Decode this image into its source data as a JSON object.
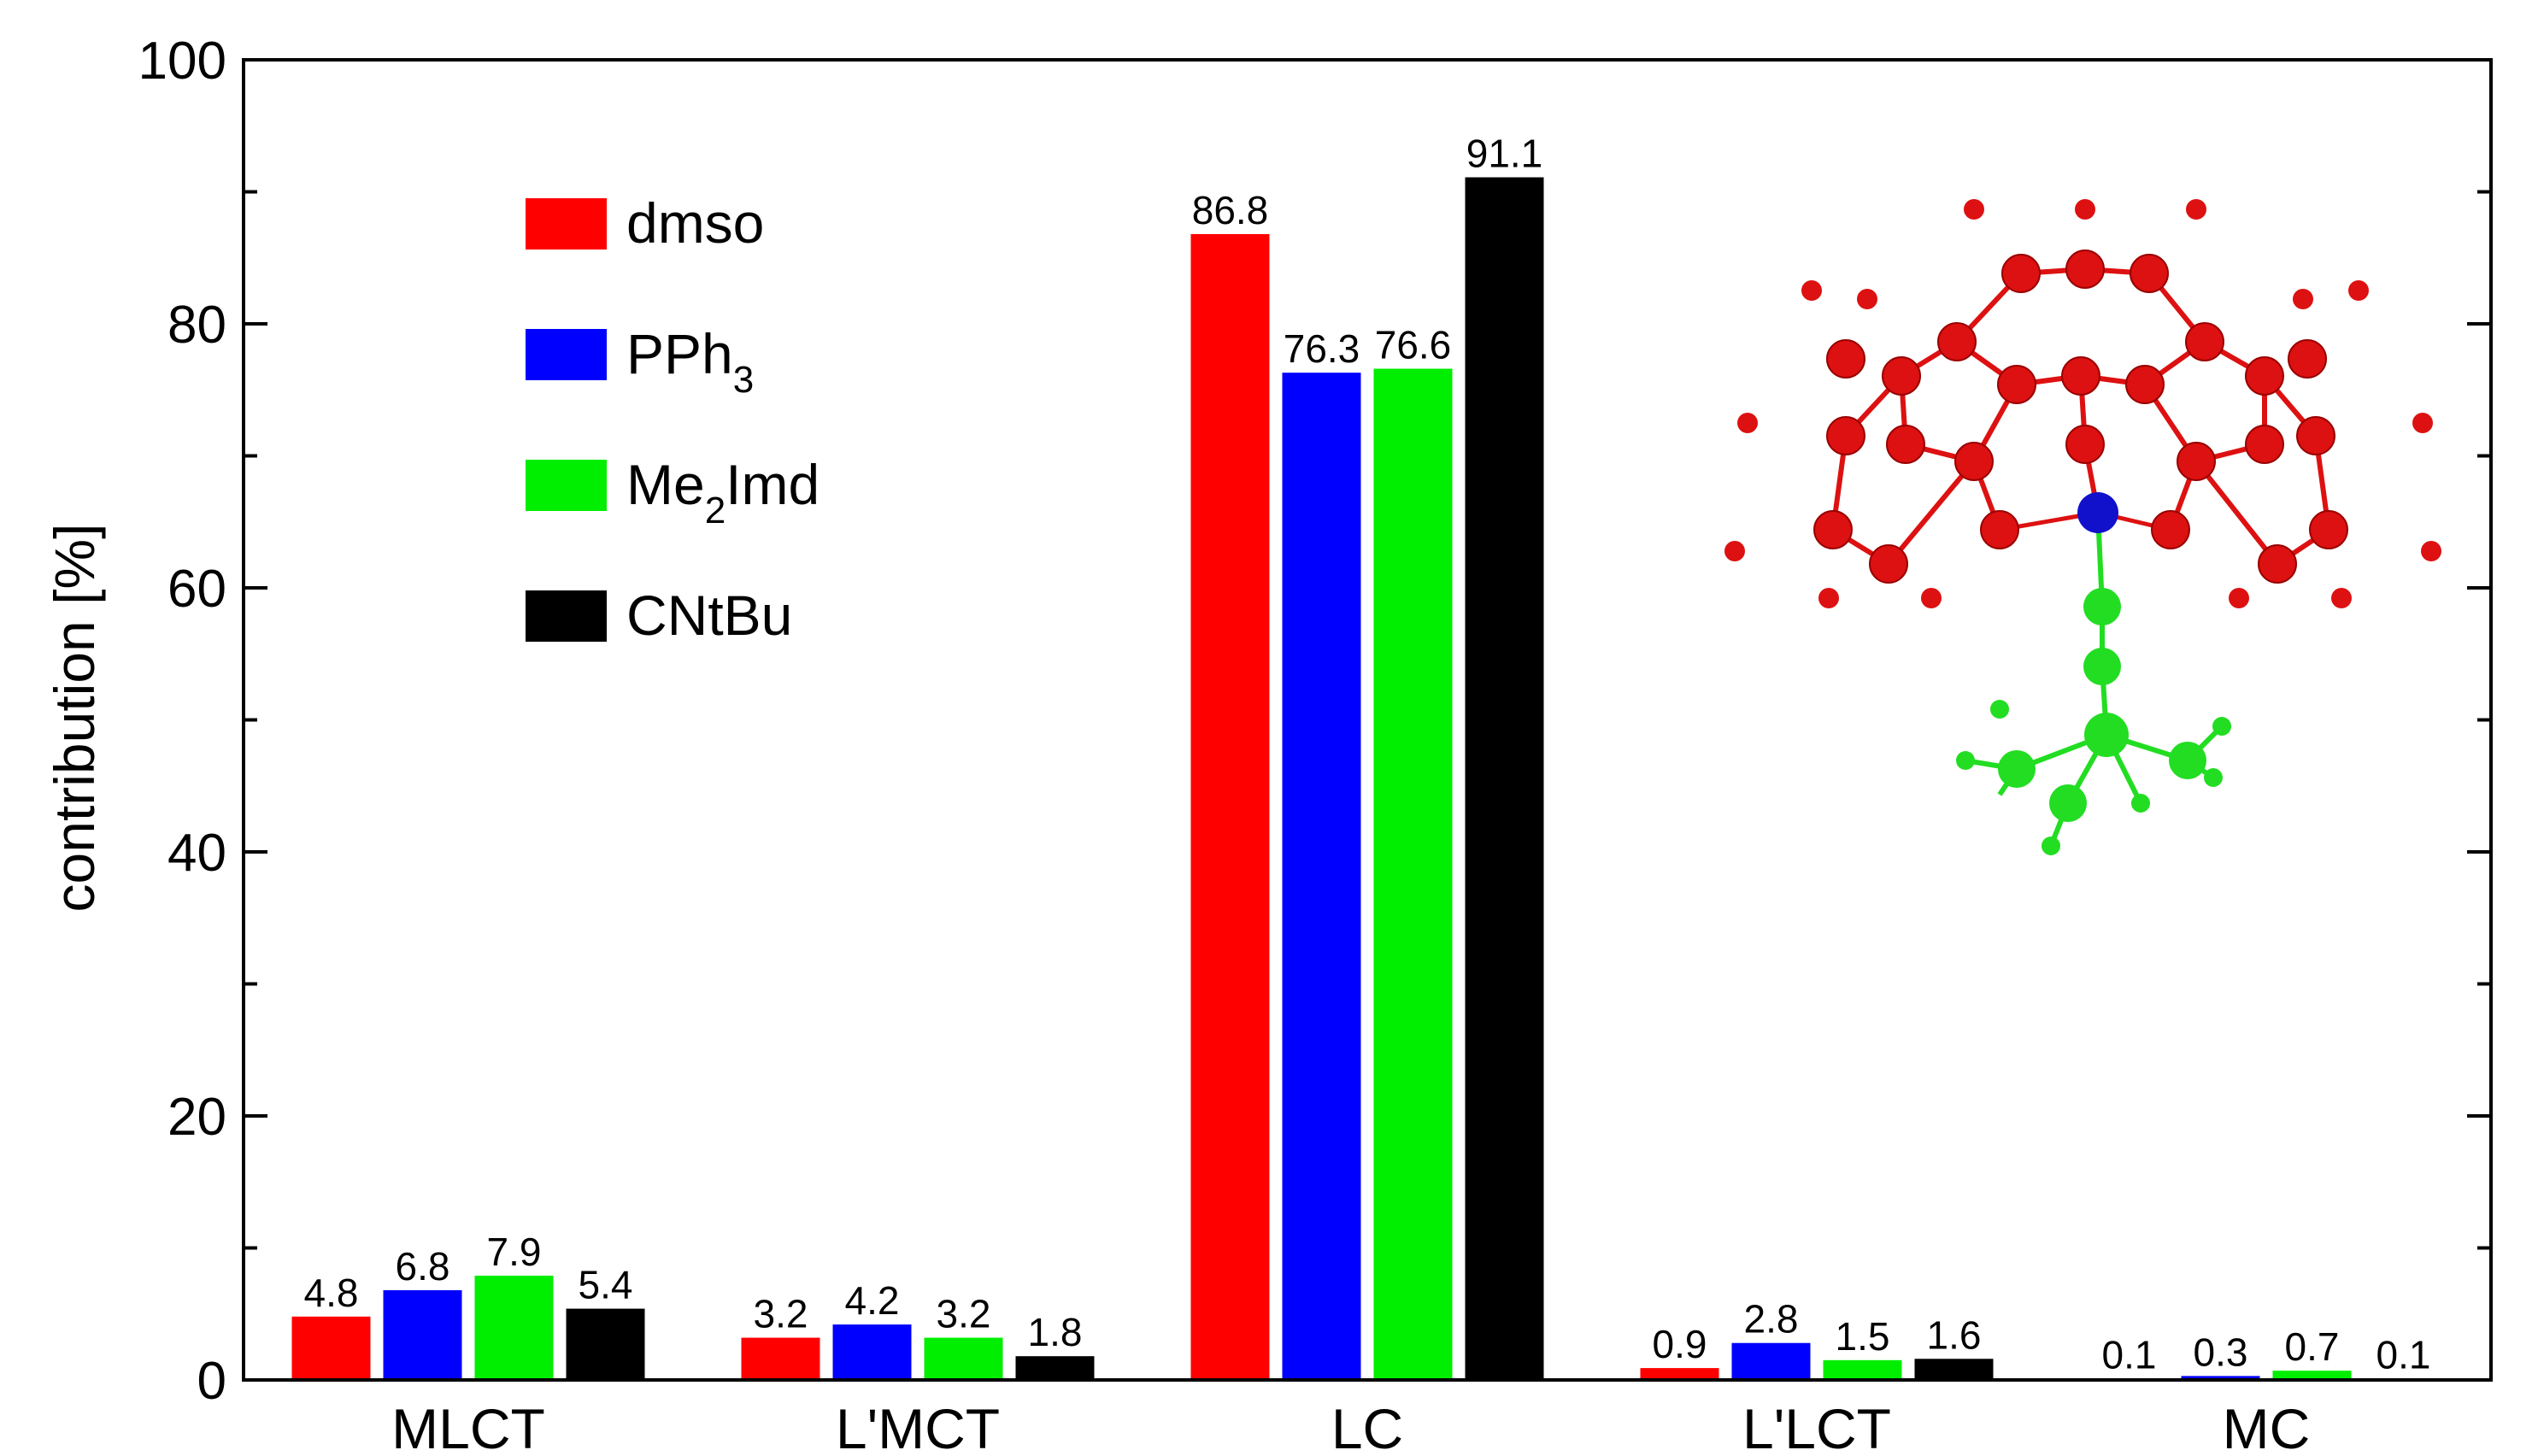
{
  "chart_data": {
    "type": "bar",
    "title": "",
    "xlabel": "",
    "ylabel": "contribution [%]",
    "ylim": [
      0,
      100
    ],
    "yticks": [
      0,
      20,
      40,
      60,
      80,
      100
    ],
    "grid": false,
    "legend_position": "top-left",
    "categories": [
      "MLCT",
      "L'MCT",
      "LC",
      "L'LCT",
      "MC"
    ],
    "series": [
      {
        "name": "dmso",
        "color": "#ff0000",
        "values": [
          4.8,
          3.2,
          86.8,
          0.9,
          0.1
        ],
        "labels": [
          "4.8",
          "3.2",
          "86.8",
          "0.9",
          "0.1"
        ]
      },
      {
        "name": "PPh3",
        "color": "#0000ff",
        "values": [
          6.8,
          4.2,
          76.3,
          2.8,
          0.3
        ],
        "labels": [
          "6.8",
          "4.2",
          "76.3",
          "2.8",
          "0.3"
        ]
      },
      {
        "name": "Me2Imd",
        "color": "#00ee00",
        "values": [
          7.9,
          3.2,
          76.6,
          1.5,
          0.7
        ],
        "labels": [
          "7.9",
          "3.2",
          "76.6",
          "1.5",
          "0.7"
        ]
      },
      {
        "name": "CNtBu",
        "color": "#000000",
        "values": [
          5.4,
          1.8,
          91.1,
          1.6,
          0.1
        ],
        "labels": [
          "5.4",
          "1.8",
          "91.1",
          "1.6",
          "0.1"
        ]
      }
    ],
    "legend": [
      {
        "main": "dmso",
        "sub": "",
        "rest": ""
      },
      {
        "main": "PPh",
        "sub": "3",
        "rest": ""
      },
      {
        "main": "Me",
        "sub": "2",
        "rest": "Imd"
      },
      {
        "main": "CNtBu",
        "sub": "",
        "rest": ""
      }
    ],
    "inset": {
      "description_icon": "molecule-structure-icon",
      "colors": {
        "ligand": "#dd1111",
        "metal": "#1111cc",
        "axial": "#22dd22"
      }
    }
  }
}
